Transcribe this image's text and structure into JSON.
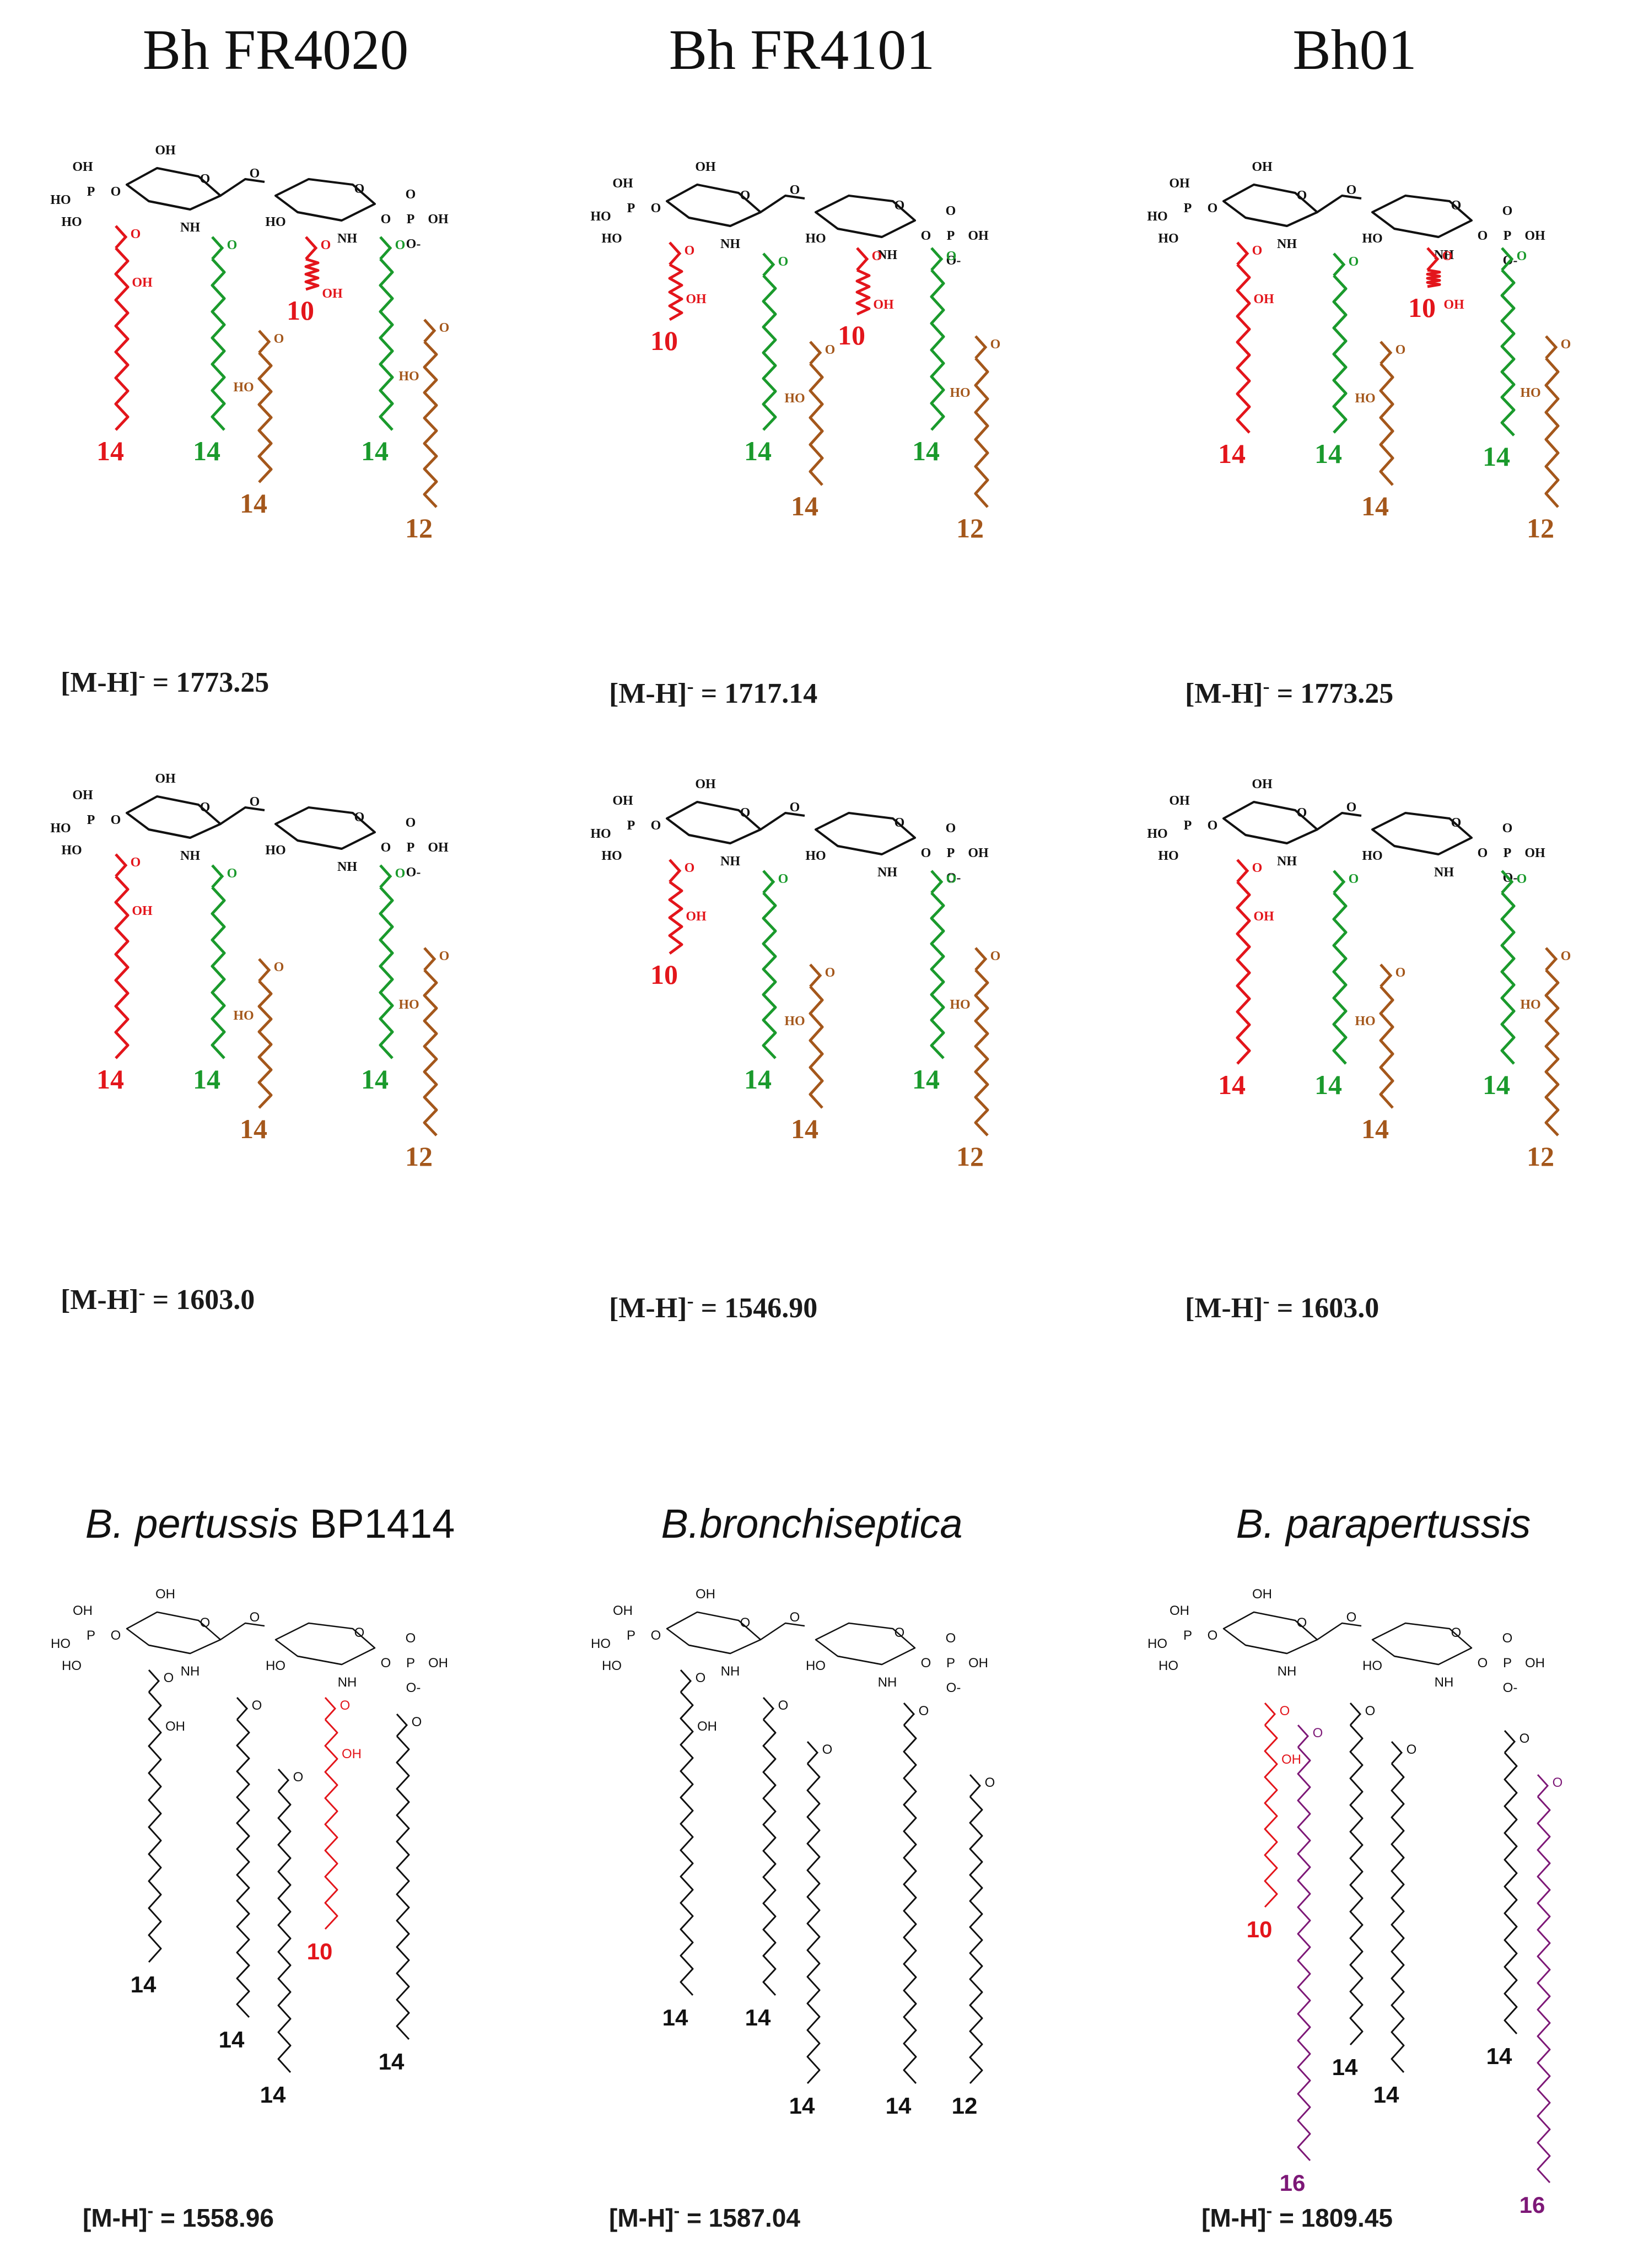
{
  "colors": {
    "red": "#e3151b",
    "green": "#1a9a2c",
    "brown": "#a4571b",
    "purple": "#7d1877",
    "black": "#111111"
  },
  "column_titles": [
    "Bh FR4020",
    "Bh FR4101",
    "Bh01"
  ],
  "bottom_titles": [
    {
      "italic": "B. pertussis",
      "normal": " BP1414"
    },
    {
      "italic": "B.bronchiseptica",
      "normal": ""
    },
    {
      "italic": "B. parapertussis",
      "normal": ""
    }
  ],
  "mass_prefix": "[M-H]",
  "mass_superscript": "-",
  "mass_separator": " = ",
  "atoms": {
    "OH": "OH",
    "HO": "HO",
    "O": "O",
    "P": "P",
    "NH": "NH",
    "O_minus": "O-",
    "paren_open": "(",
    "paren_close": ")"
  },
  "panels": [
    {
      "id": "bh-fr4020-hexa",
      "mass": "1773.25",
      "chains": [
        {
          "color": "red",
          "label": "14"
        },
        {
          "color": "green",
          "label": "14"
        },
        {
          "color": "brown",
          "label": "14"
        },
        {
          "color": "red",
          "label": "10"
        },
        {
          "color": "green",
          "label": "14"
        },
        {
          "color": "brown",
          "label": "12"
        }
      ]
    },
    {
      "id": "bh-fr4101-hexa",
      "mass": "1717.14",
      "chains": [
        {
          "color": "red",
          "label": "10"
        },
        {
          "color": "green",
          "label": "14"
        },
        {
          "color": "brown",
          "label": "14"
        },
        {
          "color": "red",
          "label": "10"
        },
        {
          "color": "green",
          "label": "14"
        },
        {
          "color": "brown",
          "label": "12"
        }
      ]
    },
    {
      "id": "bh01-hexa",
      "mass": "1773.25",
      "chains": [
        {
          "color": "red",
          "label": "14"
        },
        {
          "color": "green",
          "label": "14"
        },
        {
          "color": "brown",
          "label": "14"
        },
        {
          "color": "red",
          "label": "10"
        },
        {
          "color": "green",
          "label": "14"
        },
        {
          "color": "brown",
          "label": "12"
        }
      ]
    },
    {
      "id": "bh-fr4020-penta",
      "mass": "1603.0",
      "chains": [
        {
          "color": "red",
          "label": "14"
        },
        {
          "color": "green",
          "label": "14"
        },
        {
          "color": "brown",
          "label": "14"
        },
        {
          "color": "green",
          "label": "14"
        },
        {
          "color": "brown",
          "label": "12"
        }
      ]
    },
    {
      "id": "bh-fr4101-penta",
      "mass": "1546.90",
      "chains": [
        {
          "color": "red",
          "label": "10"
        },
        {
          "color": "green",
          "label": "14"
        },
        {
          "color": "brown",
          "label": "14"
        },
        {
          "color": "green",
          "label": "14"
        },
        {
          "color": "brown",
          "label": "12"
        }
      ]
    },
    {
      "id": "bh01-penta",
      "mass": "1603.0",
      "chains": [
        {
          "color": "red",
          "label": "14"
        },
        {
          "color": "green",
          "label": "14"
        },
        {
          "color": "brown",
          "label": "14"
        },
        {
          "color": "green",
          "label": "14"
        },
        {
          "color": "brown",
          "label": "12"
        }
      ]
    },
    {
      "id": "b-pertussis",
      "mass": "1558.96",
      "chains": [
        {
          "color": "black",
          "label": "14"
        },
        {
          "color": "black",
          "label": "14"
        },
        {
          "color": "black",
          "label": "14"
        },
        {
          "color": "red",
          "label": "10"
        },
        {
          "color": "black",
          "label": "14"
        }
      ]
    },
    {
      "id": "b-bronchiseptica",
      "mass": "1587.04",
      "chains": [
        {
          "color": "black",
          "label": "14"
        },
        {
          "color": "black",
          "label": "14"
        },
        {
          "color": "black",
          "label": "14"
        },
        {
          "color": "black",
          "label": "14"
        },
        {
          "color": "black",
          "label": "12"
        }
      ]
    },
    {
      "id": "b-parapertussis",
      "mass": "1809.45",
      "chains": [
        {
          "color": "red",
          "label": "10"
        },
        {
          "color": "purple",
          "label": "16"
        },
        {
          "color": "black",
          "label": "14"
        },
        {
          "color": "black",
          "label": "14"
        },
        {
          "color": "black",
          "label": "14"
        },
        {
          "color": "purple",
          "label": "16"
        }
      ]
    }
  ]
}
